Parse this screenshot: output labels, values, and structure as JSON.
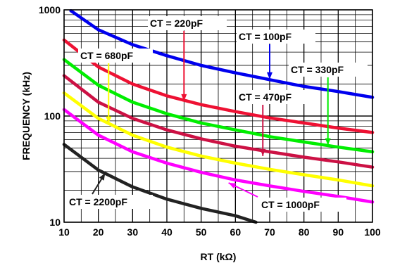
{
  "chart_data": {
    "type": "line",
    "xlabel": "RT (kΩ)",
    "ylabel": "FREQUENCY (kHz)",
    "x_scale": "linear",
    "y_scale": "log",
    "xlim": [
      10,
      100
    ],
    "ylim": [
      10,
      1000
    ],
    "x_ticks": [
      "10",
      "20",
      "30",
      "40",
      "50",
      "60",
      "70",
      "80",
      "90",
      "100"
    ],
    "y_ticks": [
      "10",
      "100",
      "1000"
    ],
    "grid": true,
    "legend": "none",
    "series": [
      {
        "name": "CT = 100pF",
        "color": "#0000ee",
        "x": [
          12,
          20,
          30,
          40,
          50,
          60,
          70,
          80,
          90,
          100
        ],
        "y": [
          980,
          650,
          470,
          370,
          300,
          255,
          220,
          190,
          170,
          150
        ]
      },
      {
        "name": "CT = 220pF",
        "color": "#ee1133",
        "x": [
          10,
          20,
          30,
          40,
          50,
          60,
          70,
          80,
          90,
          100
        ],
        "y": [
          520,
          290,
          200,
          155,
          128,
          110,
          96,
          86,
          77,
          70
        ]
      },
      {
        "name": "CT = 330pF",
        "color": "#00ee00",
        "x": [
          10,
          20,
          30,
          40,
          50,
          60,
          70,
          80,
          90,
          100
        ],
        "y": [
          340,
          195,
          135,
          105,
          86,
          74,
          64,
          57,
          51,
          46
        ]
      },
      {
        "name": "CT = 470pF",
        "color": "#cc1144",
        "x": [
          10,
          20,
          30,
          40,
          50,
          60,
          70,
          80,
          90,
          100
        ],
        "y": [
          240,
          135,
          95,
          74,
          61,
          52,
          46,
          41,
          37,
          33
        ]
      },
      {
        "name": "CT = 680pF",
        "color": "#ffff00",
        "x": [
          10,
          20,
          30,
          40,
          50,
          60,
          70,
          80,
          90,
          100
        ],
        "y": [
          165,
          95,
          66,
          51,
          42,
          36,
          31.5,
          28,
          25,
          22
        ]
      },
      {
        "name": "CT = 1000pF",
        "color": "#ff00ff",
        "x": [
          10,
          20,
          30,
          40,
          50,
          60,
          70,
          80,
          90,
          100
        ],
        "y": [
          115,
          66,
          46,
          36,
          29.5,
          25,
          22,
          19.5,
          17.5,
          15.5
        ]
      },
      {
        "name": "CT = 2200pF",
        "color": "#222222",
        "x": [
          10,
          20,
          30,
          40,
          50,
          60,
          66
        ],
        "y": [
          54,
          31,
          21.5,
          16.5,
          13.5,
          11.5,
          10
        ]
      }
    ],
    "annotations": [
      {
        "text": "CT = 220pF",
        "series": "CT = 220pF"
      },
      {
        "text": "CT = 100pF",
        "series": "CT = 100pF"
      },
      {
        "text": "CT = 680pF",
        "series": "CT = 680pF"
      },
      {
        "text": "CT = 330pF",
        "series": "CT = 330pF"
      },
      {
        "text": "CT = 470pF",
        "series": "CT = 470pF"
      },
      {
        "text": "CT = 2200pF",
        "series": "CT = 2200pF"
      },
      {
        "text": "CT = 1000pF",
        "series": "CT = 1000pF"
      }
    ]
  }
}
